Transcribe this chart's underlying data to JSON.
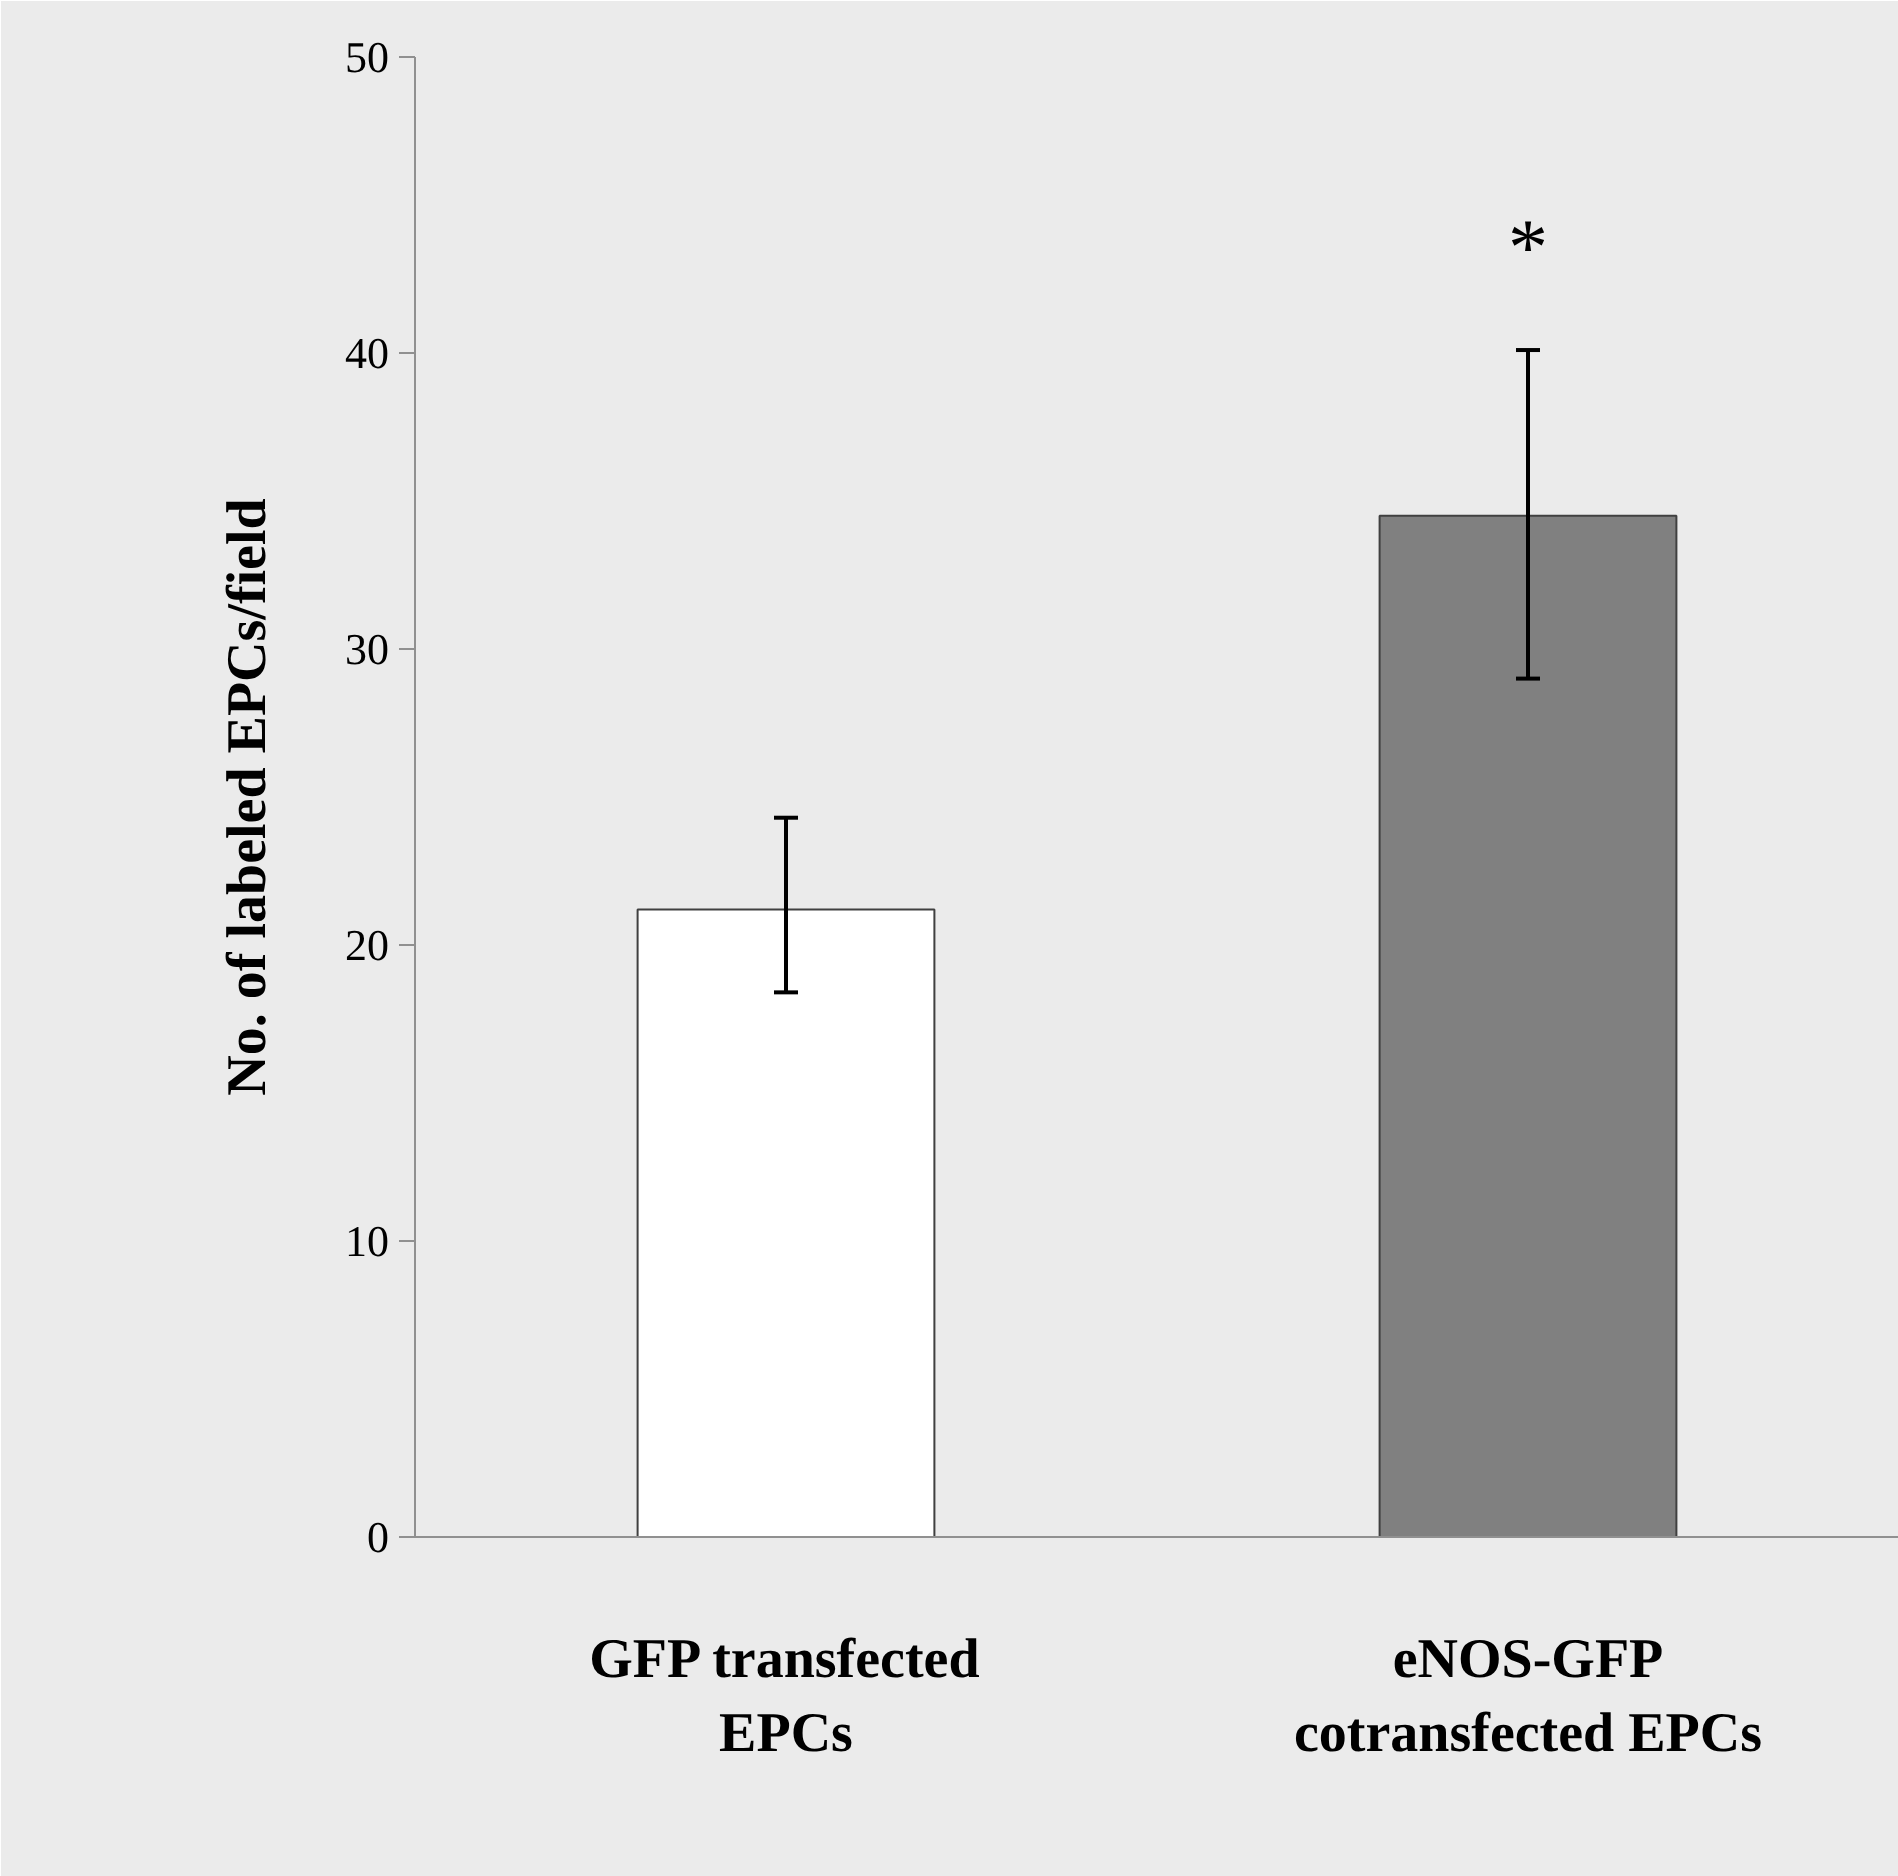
{
  "chart_data": {
    "type": "bar",
    "ylabel": "No. of labeled EPCs/field",
    "categories": [
      "GFP transfected EPCs",
      "eNOS-GFP cotransfected EPCs"
    ],
    "values": [
      21.2,
      34.5
    ],
    "errors": [
      [
        18.4,
        24.3
      ],
      [
        29.0,
        40.1
      ]
    ],
    "colors": [
      "#ffffff",
      "#808080"
    ],
    "ylim": [
      0,
      50
    ],
    "yticks": [
      0,
      10,
      20,
      30,
      40,
      50
    ],
    "annotations": [
      "*"
    ],
    "grid": false
  }
}
